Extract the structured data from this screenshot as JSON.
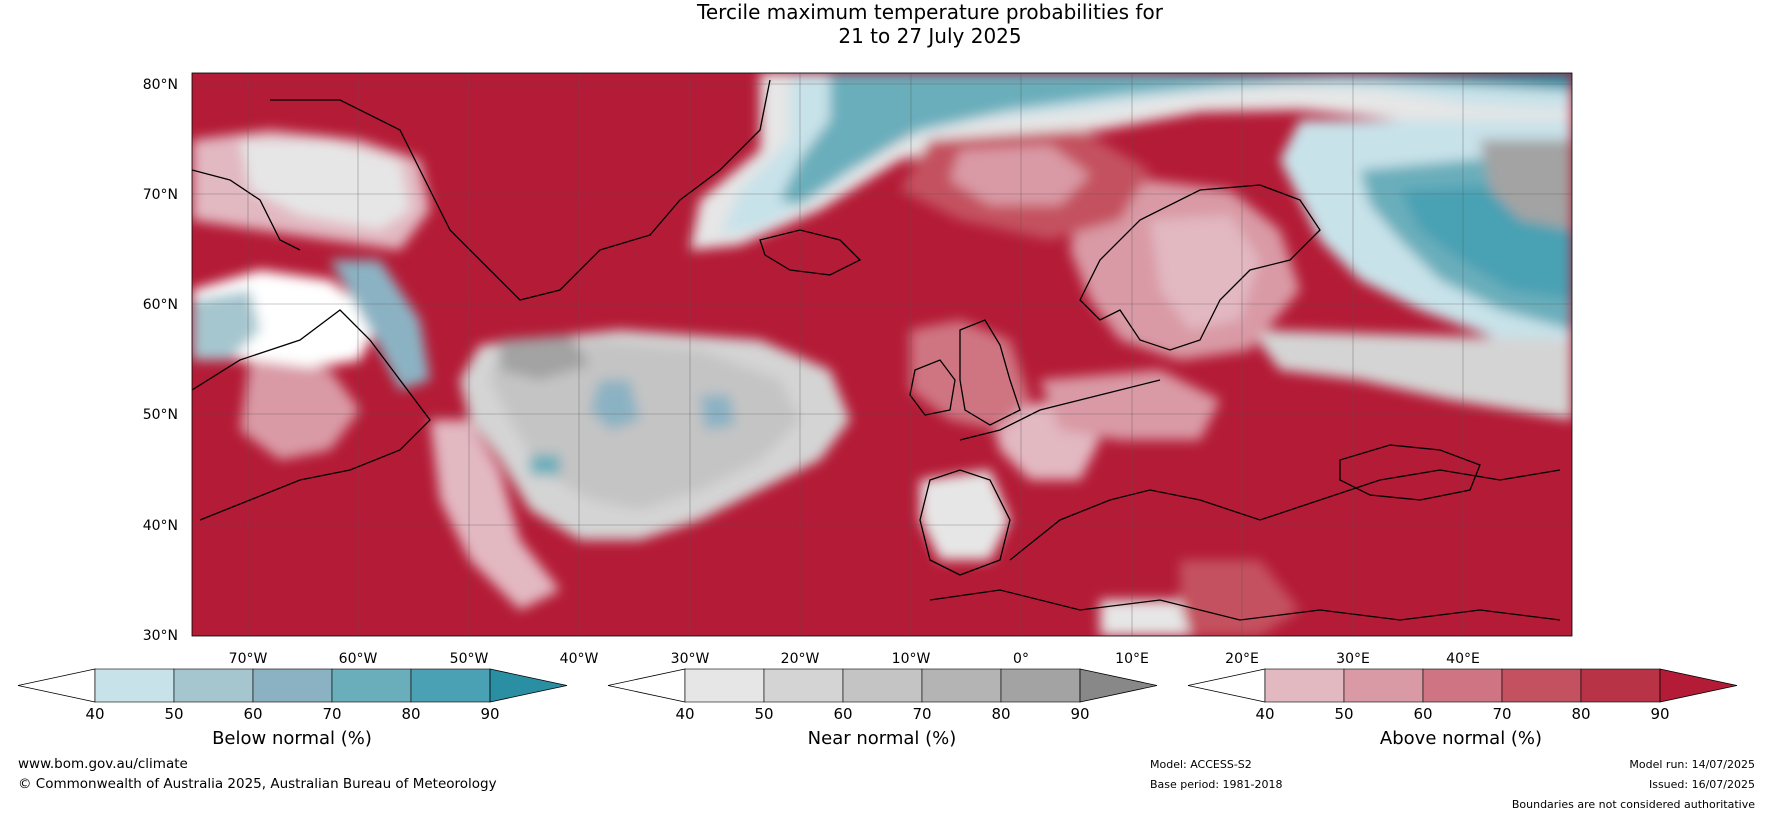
{
  "title": {
    "line1": "Tercile maximum temperature probabilities for",
    "line2": "21 to 27 July 2025"
  },
  "latitude_labels": [
    "80°N",
    "70°N",
    "60°N",
    "50°N",
    "40°N",
    "30°N"
  ],
  "longitude_labels": [
    "70°W",
    "60°W",
    "50°W",
    "40°W",
    "30°W",
    "20°W",
    "10°W",
    "0°",
    "10°E",
    "20°E",
    "30°E",
    "40°E"
  ],
  "colorbars": [
    {
      "name": "Below normal (%)",
      "ticks": [
        "40",
        "50",
        "60",
        "70",
        "80",
        "90"
      ],
      "colors": [
        "#c8e2e9",
        "#a6c6cf",
        "#8bb2c3",
        "#6aaebb",
        "#4aa1b4",
        "#2a8fa3"
      ]
    },
    {
      "name": "Near normal (%)",
      "ticks": [
        "40",
        "50",
        "60",
        "70",
        "80",
        "90"
      ],
      "colors": [
        "#e6e6e6",
        "#d4d4d4",
        "#c4c4c4",
        "#b4b4b4",
        "#a3a3a3",
        "#888888"
      ]
    },
    {
      "name": "Above normal (%)",
      "ticks": [
        "40",
        "50",
        "60",
        "70",
        "80",
        "90"
      ],
      "colors": [
        "#e2b8c1",
        "#d99aa5",
        "#cf7482",
        "#c4515f",
        "#b83346",
        "#b41b36"
      ]
    }
  ],
  "footer": {
    "website": "www.bom.gov.au/climate",
    "copyright": "© Commonwealth of Australia 2025, Australian Bureau of Meteorology",
    "model": "Model: ACCESS-S2",
    "base_period": "Base period: 1981-2018",
    "model_run": "Model run: 14/07/2025",
    "issued": "Issued: 16/07/2025",
    "disclaimer": "Boundaries are not considered authoritative"
  }
}
